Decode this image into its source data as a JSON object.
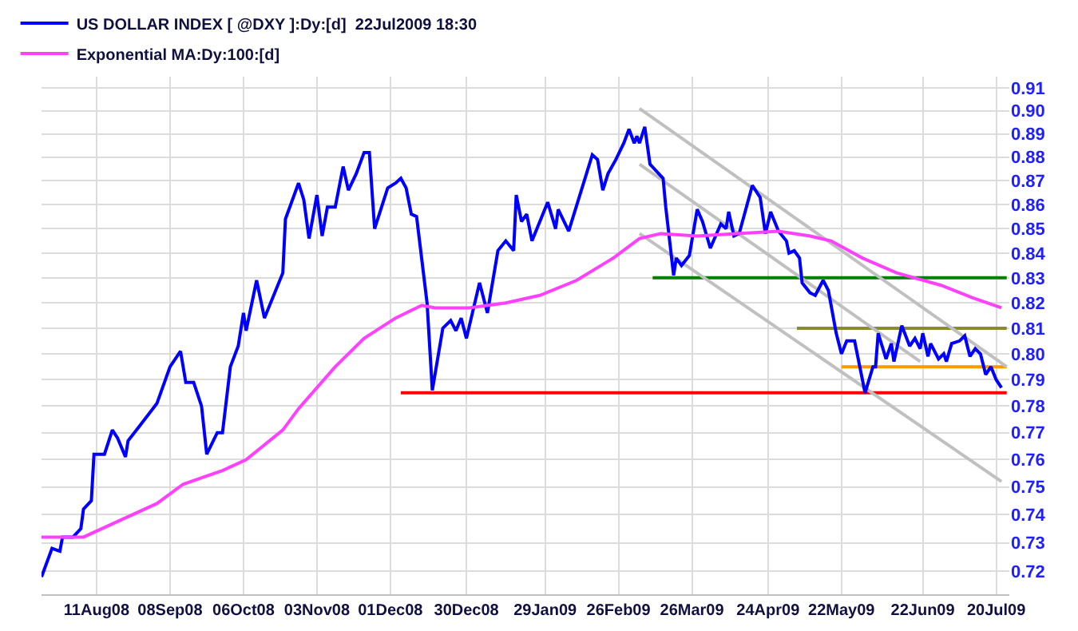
{
  "chart_data": {
    "type": "line",
    "log": "y",
    "grid": true,
    "legend": "top left",
    "marker": "none",
    "line_style": "solid",
    "xlim": [
      "2008-07-21",
      "2009-07-25"
    ],
    "xticks": [
      {
        "value": "2008-08-11",
        "label": "11Aug08"
      },
      {
        "value": "2008-09-08",
        "label": "08Sep08"
      },
      {
        "value": "2008-10-06",
        "label": "06Oct08"
      },
      {
        "value": "2008-11-03",
        "label": "03Nov08"
      },
      {
        "value": "2008-12-01",
        "label": "01Dec08"
      },
      {
        "value": "2008-12-30",
        "label": "30Dec08"
      },
      {
        "value": "2009-01-29",
        "label": "29Jan09"
      },
      {
        "value": "2009-02-26",
        "label": "26Feb09"
      },
      {
        "value": "2009-03-26",
        "label": "26Mar09"
      },
      {
        "value": "2009-04-24",
        "label": "24Apr09"
      },
      {
        "value": "2009-05-22",
        "label": "22May09"
      },
      {
        "value": "2009-06-22",
        "label": "22Jun09"
      },
      {
        "value": "2009-07-20",
        "label": "20Jul09"
      }
    ],
    "ylim": [
      0.712,
      0.915
    ],
    "yticks": [
      {
        "value": 0.72,
        "label": "0.72"
      },
      {
        "value": 0.73,
        "label": "0.73"
      },
      {
        "value": 0.74,
        "label": "0.74"
      },
      {
        "value": 0.75,
        "label": "0.75"
      },
      {
        "value": 0.76,
        "label": "0.76"
      },
      {
        "value": 0.77,
        "label": "0.77"
      },
      {
        "value": 0.78,
        "label": "0.78"
      },
      {
        "value": 0.79,
        "label": "0.79"
      },
      {
        "value": 0.8,
        "label": "0.80"
      },
      {
        "value": 0.81,
        "label": "0.81"
      },
      {
        "value": 0.82,
        "label": "0.82"
      },
      {
        "value": 0.83,
        "label": "0.83"
      },
      {
        "value": 0.84,
        "label": "0.84"
      },
      {
        "value": 0.85,
        "label": "0.85"
      },
      {
        "value": 0.86,
        "label": "0.86"
      },
      {
        "value": 0.87,
        "label": "0.87"
      },
      {
        "value": 0.88,
        "label": "0.88"
      },
      {
        "value": 0.89,
        "label": "0.89"
      },
      {
        "value": 0.9,
        "label": "0.90"
      },
      {
        "value": 0.91,
        "label": "0.91"
      }
    ],
    "series": [
      {
        "type": "line",
        "name": "US DOLLAR INDEX [ @DXY ]:Dy:[d]  22Jul2009 18:30",
        "color": "#0000ff",
        "x": [
          "2008-07-21",
          "2008-07-25",
          "2008-07-28",
          "2008-07-29",
          "2008-08-02",
          "2008-08-05",
          "2008-08-06",
          "2008-08-09",
          "2008-08-10",
          "2008-08-14",
          "2008-08-17",
          "2008-08-19",
          "2008-08-22",
          "2008-08-23",
          "2008-08-27",
          "2008-09-03",
          "2008-09-08",
          "2008-09-12",
          "2008-09-14",
          "2008-09-17",
          "2008-09-20",
          "2008-09-22",
          "2008-09-26",
          "2008-09-28",
          "2008-10-01",
          "2008-10-04",
          "2008-10-06",
          "2008-10-07",
          "2008-10-11",
          "2008-10-14",
          "2008-10-21",
          "2008-10-22",
          "2008-10-27",
          "2008-10-29",
          "2008-10-31",
          "2008-11-03",
          "2008-11-05",
          "2008-11-07",
          "2008-11-10",
          "2008-11-13",
          "2008-11-15",
          "2008-11-18",
          "2008-11-21",
          "2008-11-23",
          "2008-11-25",
          "2008-11-30",
          "2008-12-03",
          "2008-12-05",
          "2008-12-07",
          "2008-12-09",
          "2008-12-11",
          "2008-12-15",
          "2008-12-17",
          "2008-12-21",
          "2008-12-24",
          "2008-12-26",
          "2008-12-28",
          "2008-12-30",
          "2009-01-04",
          "2009-01-07",
          "2009-01-11",
          "2009-01-14",
          "2009-01-17",
          "2009-01-18",
          "2009-01-20",
          "2009-01-22",
          "2009-01-24",
          "2009-01-30",
          "2009-02-02",
          "2009-02-03",
          "2009-02-07",
          "2009-02-09",
          "2009-02-16",
          "2009-02-18",
          "2009-02-20",
          "2009-02-22",
          "2009-02-25",
          "2009-02-28",
          "2009-03-02",
          "2009-03-04",
          "2009-03-05",
          "2009-03-06",
          "2009-03-08",
          "2009-03-10",
          "2009-03-15",
          "2009-03-16",
          "2009-03-19",
          "2009-03-20",
          "2009-03-22",
          "2009-03-25",
          "2009-03-28",
          "2009-03-30",
          "2009-04-02",
          "2009-04-06",
          "2009-04-08",
          "2009-04-09",
          "2009-04-11",
          "2009-04-13",
          "2009-04-18",
          "2009-04-21",
          "2009-04-23",
          "2009-04-25",
          "2009-04-28",
          "2009-05-01",
          "2009-05-02",
          "2009-05-04",
          "2009-05-06",
          "2009-05-07",
          "2009-05-10",
          "2009-05-12",
          "2009-05-15",
          "2009-05-17",
          "2009-05-20",
          "2009-05-22",
          "2009-05-24",
          "2009-05-27",
          "2009-05-31",
          "2009-06-03",
          "2009-06-04",
          "2009-06-05",
          "2009-06-08",
          "2009-06-10",
          "2009-06-11",
          "2009-06-14",
          "2009-06-17",
          "2009-06-19",
          "2009-06-21",
          "2009-06-22",
          "2009-06-24",
          "2009-06-25",
          "2009-06-28",
          "2009-06-30",
          "2009-07-01",
          "2009-07-03",
          "2009-07-06",
          "2009-07-08",
          "2009-07-10",
          "2009-07-12",
          "2009-07-14",
          "2009-07-16",
          "2009-07-18",
          "2009-07-20",
          "2009-07-22"
        ],
        "values": [
          0.718,
          0.728,
          0.727,
          0.732,
          0.732,
          0.735,
          0.742,
          0.745,
          0.762,
          0.762,
          0.771,
          0.768,
          0.761,
          0.767,
          0.772,
          0.781,
          0.795,
          0.801,
          0.789,
          0.789,
          0.78,
          0.762,
          0.77,
          0.77,
          0.795,
          0.803,
          0.816,
          0.809,
          0.829,
          0.814,
          0.832,
          0.854,
          0.869,
          0.862,
          0.846,
          0.864,
          0.847,
          0.859,
          0.859,
          0.876,
          0.866,
          0.873,
          0.882,
          0.882,
          0.85,
          0.867,
          0.869,
          0.871,
          0.867,
          0.856,
          0.855,
          0.82,
          0.786,
          0.81,
          0.813,
          0.809,
          0.814,
          0.806,
          0.828,
          0.816,
          0.841,
          0.845,
          0.841,
          0.864,
          0.853,
          0.856,
          0.845,
          0.861,
          0.85,
          0.858,
          0.849,
          0.856,
          0.881,
          0.879,
          0.866,
          0.873,
          0.879,
          0.886,
          0.892,
          0.886,
          0.889,
          0.886,
          0.893,
          0.877,
          0.871,
          0.859,
          0.831,
          0.838,
          0.835,
          0.839,
          0.858,
          0.853,
          0.842,
          0.852,
          0.85,
          0.857,
          0.847,
          0.848,
          0.868,
          0.863,
          0.848,
          0.857,
          0.849,
          0.845,
          0.84,
          0.841,
          0.838,
          0.828,
          0.824,
          0.823,
          0.829,
          0.825,
          0.808,
          0.8,
          0.805,
          0.805,
          0.785,
          0.795,
          0.795,
          0.808,
          0.798,
          0.804,
          0.797,
          0.811,
          0.803,
          0.806,
          0.802,
          0.808,
          0.799,
          0.804,
          0.798,
          0.8,
          0.797,
          0.804,
          0.805,
          0.807,
          0.799,
          0.802,
          0.8,
          0.792,
          0.795,
          0.79,
          0.787
        ]
      },
      {
        "type": "line",
        "name": "Exponential MA:Dy:100:[d]",
        "color": "#ff40ff",
        "x": [
          "2008-07-21",
          "2008-08-06",
          "2008-08-20",
          "2008-09-03",
          "2008-09-13",
          "2008-09-19",
          "2008-09-28",
          "2008-10-07",
          "2008-10-21",
          "2008-10-27",
          "2008-11-10",
          "2008-11-21",
          "2008-12-03",
          "2008-12-13",
          "2008-12-18",
          "2008-12-31",
          "2009-01-14",
          "2009-01-27",
          "2009-02-10",
          "2009-02-24",
          "2009-03-06",
          "2009-03-14",
          "2009-03-28",
          "2009-04-12",
          "2009-04-28",
          "2009-05-10",
          "2009-05-18",
          "2009-05-30",
          "2009-06-12",
          "2009-06-29",
          "2009-07-11",
          "2009-07-22"
        ],
        "values": [
          0.732,
          0.732,
          0.738,
          0.744,
          0.751,
          0.753,
          0.756,
          0.76,
          0.771,
          0.779,
          0.795,
          0.806,
          0.814,
          0.819,
          0.818,
          0.818,
          0.82,
          0.823,
          0.829,
          0.838,
          0.846,
          0.848,
          0.847,
          0.848,
          0.849,
          0.847,
          0.845,
          0.838,
          0.832,
          0.827,
          0.822,
          0.818
        ]
      },
      {
        "type": "line",
        "color": "#ff0000",
        "x": [
          "2008-12-05",
          "2009-07-24"
        ],
        "values": [
          0.785,
          0.785
        ]
      },
      {
        "type": "line",
        "color": "#008000",
        "x": [
          "2009-03-11",
          "2009-07-24"
        ],
        "values": [
          0.83,
          0.83
        ]
      },
      {
        "type": "line",
        "color": "#8b8b2a",
        "x": [
          "2009-05-05",
          "2009-07-24"
        ],
        "values": [
          0.81,
          0.81
        ]
      },
      {
        "type": "line",
        "color": "#ff9900",
        "x": [
          "2009-05-22",
          "2009-07-24"
        ],
        "values": [
          0.795,
          0.795
        ]
      },
      {
        "type": "line",
        "color": "#c0c0c0",
        "x": [
          "2009-03-06",
          "2009-07-24"
        ],
        "values": [
          0.901,
          0.795
        ]
      },
      {
        "type": "line",
        "color": "#c0c0c0",
        "x": [
          "2009-03-06",
          "2009-06-21"
        ],
        "values": [
          0.877,
          0.797
        ]
      },
      {
        "type": "line",
        "color": "#c0c0c0",
        "x": [
          "2009-03-06",
          "2009-07-22"
        ],
        "values": [
          0.848,
          0.752
        ]
      }
    ]
  }
}
